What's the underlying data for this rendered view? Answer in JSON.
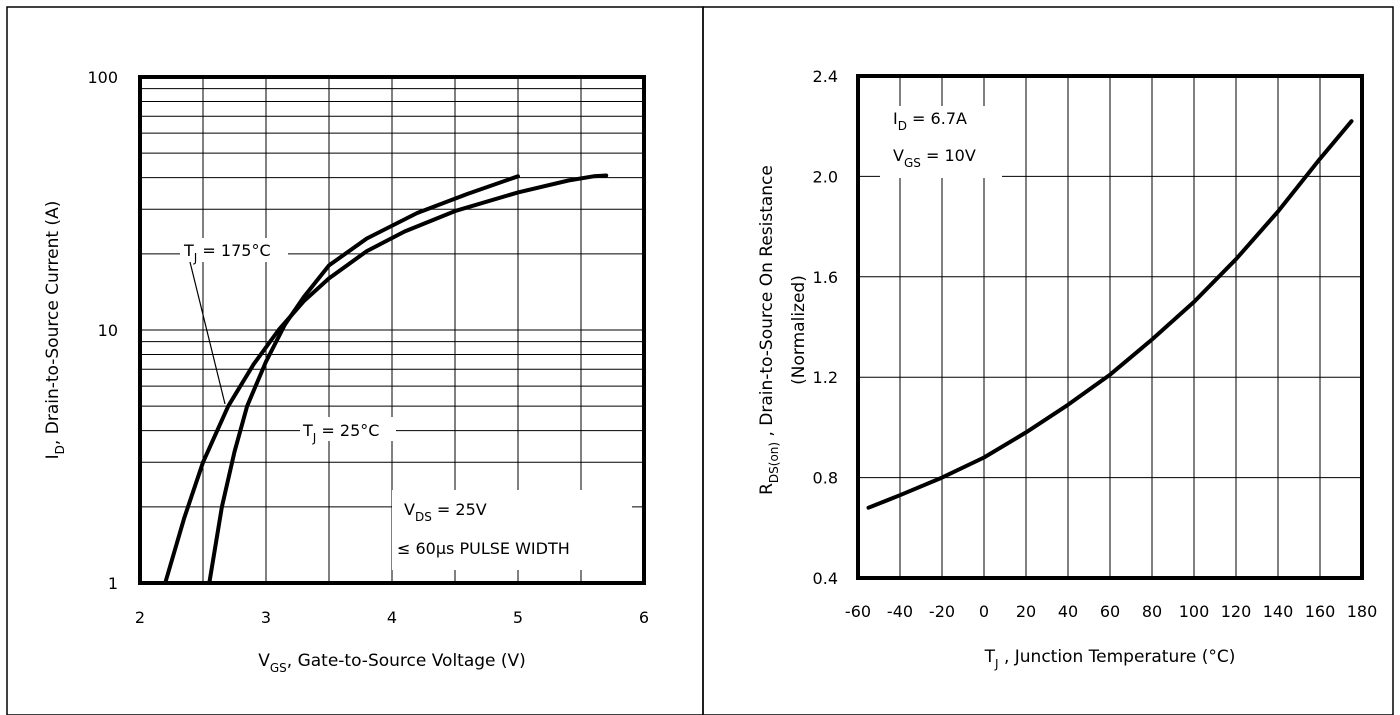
{
  "chart_data": [
    {
      "type": "line",
      "xlabel": "V",
      "xlabel_sub": "GS",
      "xlabel_rest": ", Gate-to-Source Voltage (V)",
      "ylabel": "I",
      "ylabel_sub": "D",
      "ylabel_rest": ", Drain-to-Source Current (A)",
      "xlim": [
        2,
        6
      ],
      "ylim": [
        1,
        100
      ],
      "yscale": "log",
      "xticks": [
        "2",
        "3",
        "4",
        "5",
        "6"
      ],
      "yticks": [
        "1",
        "10",
        "100"
      ],
      "grid": true,
      "series": [
        {
          "name": "TJ = 175°C",
          "label": "T",
          "label_sub": "J",
          "label_rest": " = 175°C",
          "x": [
            2.2,
            2.35,
            2.5,
            2.7,
            2.9,
            3.1,
            3.3,
            3.5,
            3.8,
            4.1,
            4.5,
            5.0,
            5.4,
            5.6,
            5.7
          ],
          "y": [
            1.0,
            1.8,
            3.0,
            5.0,
            7.3,
            10.0,
            13.0,
            16.0,
            20.5,
            24.5,
            29.5,
            35.0,
            39.0,
            40.5,
            40.8
          ]
        },
        {
          "name": "TJ = 25°C",
          "label": "T",
          "label_sub": "J",
          "label_rest": " = 25°C",
          "x": [
            2.55,
            2.65,
            2.75,
            2.85,
            3.0,
            3.15,
            3.3,
            3.5,
            3.8,
            4.2,
            4.6,
            5.0
          ],
          "y": [
            1.0,
            2.0,
            3.3,
            5.0,
            7.5,
            10.5,
            13.5,
            18.0,
            23.0,
            29.0,
            34.5,
            40.5
          ]
        }
      ],
      "annotations": [
        {
          "text": "V",
          "sub": "DS",
          "rest": " = 25V"
        },
        {
          "text": "≤ 60μs PULSE WIDTH"
        }
      ]
    },
    {
      "type": "line",
      "xlabel": "T",
      "xlabel_sub": "J",
      "xlabel_rest": " , Junction Temperature (°C)",
      "ylabel": "R",
      "ylabel_sub": "DS(on)",
      "ylabel_rest": " , Drain-to-Source On Resistance",
      "ylabel2": "(Normalized)",
      "xlim": [
        -60,
        180
      ],
      "ylim": [
        0.4,
        2.4
      ],
      "xticks": [
        "-60",
        "-40",
        "-20",
        "0",
        "20",
        "40",
        "60",
        "80",
        "100",
        "120",
        "140",
        "160",
        "180"
      ],
      "yticks": [
        "0.4",
        "0.8",
        "1.2",
        "1.6",
        "2.0",
        "2.4"
      ],
      "grid": true,
      "series": [
        {
          "x": [
            -55,
            -40,
            -20,
            0,
            20,
            40,
            60,
            80,
            100,
            120,
            140,
            160,
            175
          ],
          "y": [
            0.68,
            0.73,
            0.8,
            0.88,
            0.98,
            1.09,
            1.21,
            1.35,
            1.5,
            1.67,
            1.86,
            2.07,
            2.22
          ]
        }
      ],
      "annotations": [
        {
          "text": "I",
          "sub": "D",
          "rest": " = 6.7A"
        },
        {
          "text": "V",
          "sub": "GS",
          "rest": " = 10V"
        }
      ]
    }
  ]
}
